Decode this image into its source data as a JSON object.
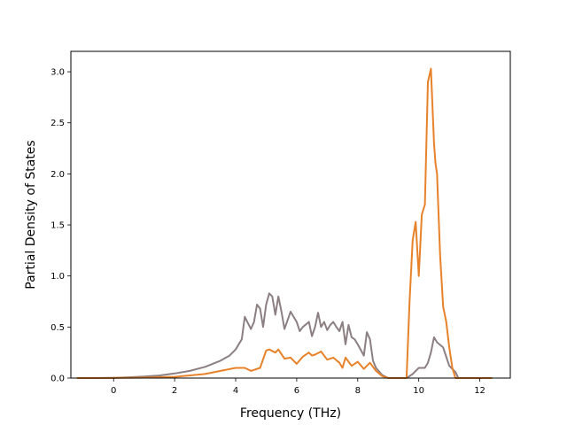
{
  "chart_data": {
    "type": "line",
    "title": "",
    "xlabel": "Frequency (THz)",
    "ylabel": "Partial Density of States",
    "xlim": [
      -1.4,
      13.0
    ],
    "ylim": [
      0,
      3.2
    ],
    "xticks": [
      0,
      2,
      4,
      6,
      8,
      10,
      12
    ],
    "yticks": [
      0.0,
      0.5,
      1.0,
      1.5,
      2.0,
      2.5,
      3.0
    ],
    "xtick_labels": [
      "0",
      "2",
      "4",
      "6",
      "8",
      "10",
      "12"
    ],
    "ytick_labels": [
      "0.0",
      "0.5",
      "1.0",
      "1.5",
      "2.0",
      "2.5",
      "3.0"
    ],
    "grid": false,
    "series": [
      {
        "color": "#8c7f82",
        "x": [
          -1.2,
          -0.5,
          0.0,
          0.5,
          1.0,
          1.5,
          2.0,
          2.5,
          3.0,
          3.5,
          3.8,
          4.0,
          4.2,
          4.3,
          4.5,
          4.6,
          4.7,
          4.8,
          4.9,
          5.0,
          5.1,
          5.2,
          5.3,
          5.4,
          5.5,
          5.6,
          5.8,
          5.9,
          6.0,
          6.1,
          6.2,
          6.4,
          6.5,
          6.6,
          6.7,
          6.8,
          6.9,
          7.0,
          7.1,
          7.2,
          7.3,
          7.4,
          7.5,
          7.6,
          7.7,
          7.8,
          7.9,
          8.0,
          8.2,
          8.3,
          8.4,
          8.5,
          8.6,
          8.8,
          9.0,
          9.3,
          9.6,
          9.8,
          10.0,
          10.2,
          10.3,
          10.4,
          10.5,
          10.6,
          10.8,
          11.0,
          11.2,
          11.3,
          11.5,
          12.4
        ],
        "values": [
          0.0,
          0.0,
          0.003,
          0.008,
          0.015,
          0.025,
          0.045,
          0.07,
          0.11,
          0.17,
          0.22,
          0.28,
          0.38,
          0.6,
          0.48,
          0.55,
          0.72,
          0.68,
          0.5,
          0.72,
          0.83,
          0.8,
          0.62,
          0.8,
          0.65,
          0.48,
          0.65,
          0.6,
          0.55,
          0.46,
          0.5,
          0.55,
          0.41,
          0.5,
          0.64,
          0.5,
          0.55,
          0.47,
          0.52,
          0.55,
          0.5,
          0.46,
          0.55,
          0.33,
          0.52,
          0.4,
          0.38,
          0.33,
          0.22,
          0.45,
          0.38,
          0.17,
          0.1,
          0.03,
          0.0,
          0.0,
          0.0,
          0.04,
          0.1,
          0.1,
          0.15,
          0.25,
          0.4,
          0.35,
          0.3,
          0.12,
          0.06,
          0.0,
          0.0,
          0.0
        ]
      },
      {
        "color": "#e8822a",
        "x": [
          -1.2,
          0.0,
          1.0,
          2.0,
          3.0,
          3.5,
          4.0,
          4.3,
          4.5,
          4.8,
          5.0,
          5.1,
          5.3,
          5.4,
          5.6,
          5.8,
          6.0,
          6.2,
          6.4,
          6.5,
          6.6,
          6.8,
          7.0,
          7.2,
          7.4,
          7.5,
          7.6,
          7.8,
          8.0,
          8.2,
          8.4,
          8.6,
          8.8,
          9.0,
          9.6,
          9.7,
          9.8,
          9.9,
          10.0,
          10.1,
          10.2,
          10.3,
          10.4,
          10.5,
          10.55,
          10.6,
          10.7,
          10.8,
          10.9,
          11.0,
          11.1,
          11.2,
          11.3,
          12.4
        ],
        "values": [
          0.0,
          0.001,
          0.004,
          0.012,
          0.04,
          0.07,
          0.1,
          0.1,
          0.07,
          0.1,
          0.27,
          0.28,
          0.25,
          0.28,
          0.19,
          0.2,
          0.14,
          0.21,
          0.25,
          0.22,
          0.23,
          0.26,
          0.18,
          0.2,
          0.15,
          0.1,
          0.2,
          0.12,
          0.16,
          0.09,
          0.15,
          0.07,
          0.02,
          0.0,
          0.0,
          0.75,
          1.35,
          1.53,
          1.0,
          1.6,
          1.7,
          2.9,
          3.03,
          2.3,
          2.1,
          2.0,
          1.2,
          0.7,
          0.55,
          0.3,
          0.1,
          0.0,
          0.0,
          0.0
        ]
      }
    ]
  }
}
